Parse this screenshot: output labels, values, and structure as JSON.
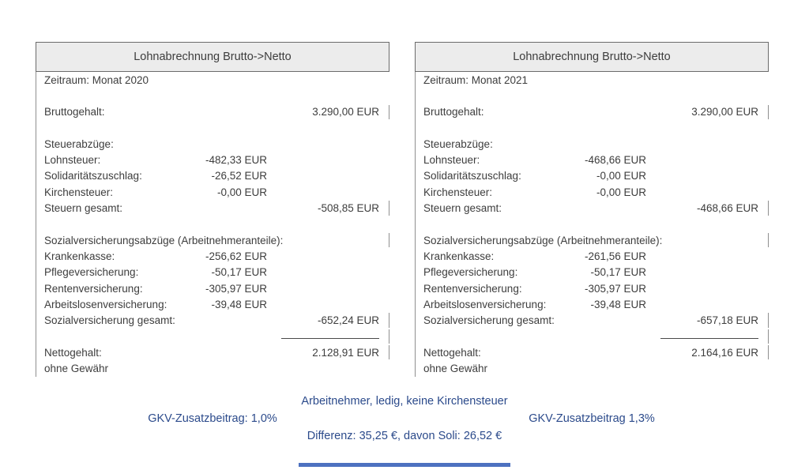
{
  "colors": {
    "header_bg": "#ececec",
    "panel_border": "#6b6b6b",
    "body_text": "#3d3d3d",
    "note_blue": "#2b4a8b",
    "bottom_bar_blue": "#4d71c0"
  },
  "panels": [
    {
      "title": "Lohnabrechnung Brutto->Netto",
      "rows": [
        {
          "label": "Zeitraum: Monat 2020"
        },
        {
          "spacer": true
        },
        {
          "label": "Bruttogehalt:",
          "total": "3.290,00 EUR",
          "tick": true
        },
        {
          "spacer": true
        },
        {
          "label": "Steuerabzüge:"
        },
        {
          "label": "Lohnsteuer:",
          "mid": "-482,33 EUR"
        },
        {
          "label": "Solidaritätszuschlag:",
          "mid": "-26,52 EUR"
        },
        {
          "label": "Kirchensteuer:",
          "mid": "-0,00 EUR"
        },
        {
          "label": "Steuern gesamt:",
          "total": "-508,85 EUR",
          "tick": true
        },
        {
          "spacer": true
        },
        {
          "label": "Sozialversicherungsabzüge (Arbeitnehmeranteile):",
          "tick": true
        },
        {
          "label": "Krankenkasse:",
          "mid": "-256,62 EUR"
        },
        {
          "label": "Pflegeversicherung:",
          "mid": "-50,17 EUR"
        },
        {
          "label": "Rentenversicherung:",
          "mid": "-305,97 EUR"
        },
        {
          "label": "Arbeitslosenversicherung:",
          "mid": "-39,48 EUR"
        },
        {
          "label": "Sozialversicherung gesamt:",
          "total": "-652,24 EUR",
          "tick": true
        },
        {
          "spacer": true,
          "sumline": true,
          "tick": true
        },
        {
          "label": "Nettogehalt:",
          "total": "2.128,91 EUR",
          "tick": true
        },
        {
          "label": "ohne Gewähr"
        }
      ]
    },
    {
      "title": "Lohnabrechnung Brutto->Netto",
      "rows": [
        {
          "label": "Zeitraum: Monat 2021"
        },
        {
          "spacer": true
        },
        {
          "label": "Bruttogehalt:",
          "total": "3.290,00 EUR",
          "tick": true
        },
        {
          "spacer": true
        },
        {
          "label": "Steuerabzüge:"
        },
        {
          "label": "Lohnsteuer:",
          "mid": "-468,66 EUR"
        },
        {
          "label": "Solidaritätszuschlag:",
          "mid": "-0,00 EUR"
        },
        {
          "label": "Kirchensteuer:",
          "mid": "-0,00 EUR"
        },
        {
          "label": "Steuern gesamt:",
          "total": "-468,66 EUR",
          "tick": true
        },
        {
          "spacer": true
        },
        {
          "label": "Sozialversicherungsabzüge (Arbeitnehmeranteile):",
          "tick": true
        },
        {
          "label": "Krankenkasse:",
          "mid": "-261,56 EUR"
        },
        {
          "label": "Pflegeversicherung:",
          "mid": "-50,17 EUR"
        },
        {
          "label": "Rentenversicherung:",
          "mid": "-305,97 EUR"
        },
        {
          "label": "Arbeitslosenversicherung:",
          "mid": "-39,48 EUR"
        },
        {
          "label": "Sozialversicherung gesamt:",
          "total": "-657,18 EUR",
          "tick": true
        },
        {
          "spacer": true,
          "sumline": true,
          "tick": true
        },
        {
          "label": "Nettogehalt:",
          "total": "2.164,16 EUR",
          "tick": true
        },
        {
          "label": "ohne Gewähr"
        }
      ]
    }
  ],
  "notes": {
    "profile": "Arbeitnehmer, ledig, keine Kirchensteuer",
    "gkv_left": "GKV-Zusatzbeitrag: 1,0%",
    "gkv_right": "GKV-Zusatzbeitrag 1,3%",
    "difference": "Differenz: 35,25 €, davon Soli: 26,52 €"
  }
}
